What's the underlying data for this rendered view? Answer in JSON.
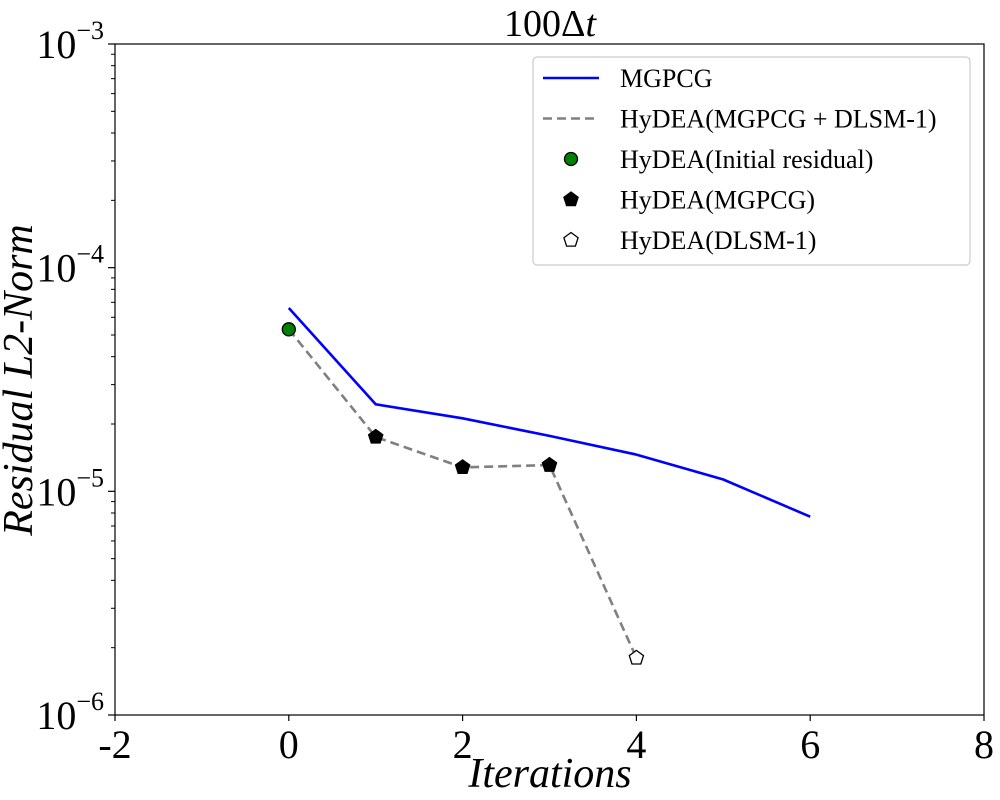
{
  "chart_data": {
    "type": "line",
    "title": "100Δt",
    "title_main": "100Δ",
    "title_var": "t",
    "xlabel": "Iterations",
    "ylabel": "Residual L2-Norm",
    "xlim": [
      -2,
      8
    ],
    "ylim": [
      1e-06,
      0.001
    ],
    "yscale": "log",
    "x_ticks": [
      -2,
      0,
      2,
      4,
      6,
      8
    ],
    "y_ticks": [
      {
        "value": 1e-06,
        "base": "10",
        "exp": "−6"
      },
      {
        "value": 1e-05,
        "base": "10",
        "exp": "−5"
      },
      {
        "value": 0.0001,
        "base": "10",
        "exp": "−4"
      },
      {
        "value": 0.001,
        "base": "10",
        "exp": "−3"
      }
    ],
    "series": [
      {
        "name": "MGPCG",
        "style": "solid-line",
        "color": "#0000ff",
        "x": [
          0,
          1,
          2,
          3,
          4,
          5,
          6
        ],
        "values": [
          6.6e-05,
          2.45e-05,
          2.12e-05,
          1.77e-05,
          1.46e-05,
          1.13e-05,
          7.7e-06
        ]
      },
      {
        "name": "HyDEA(MGPCG + DLSM-1)",
        "style": "dashed-line",
        "color": "#808080",
        "x": [
          0,
          1,
          2,
          3,
          4
        ],
        "values": [
          5.3e-05,
          1.75e-05,
          1.28e-05,
          1.31e-05,
          1.8e-06
        ]
      },
      {
        "name": "HyDEA(Initial residual)",
        "style": "circle-marker",
        "color": "#008000",
        "x": [
          0
        ],
        "values": [
          5.3e-05
        ]
      },
      {
        "name": "HyDEA(MGPCG)",
        "style": "filled-pentagon-marker",
        "color": "#000000",
        "x": [
          1,
          2,
          3
        ],
        "values": [
          1.75e-05,
          1.28e-05,
          1.31e-05
        ]
      },
      {
        "name": "HyDEA(DLSM-1)",
        "style": "open-pentagon-marker",
        "color": "#ffffff",
        "x": [
          4
        ],
        "values": [
          1.8e-06
        ]
      }
    ],
    "legend_position": "top-right",
    "grid": false
  }
}
